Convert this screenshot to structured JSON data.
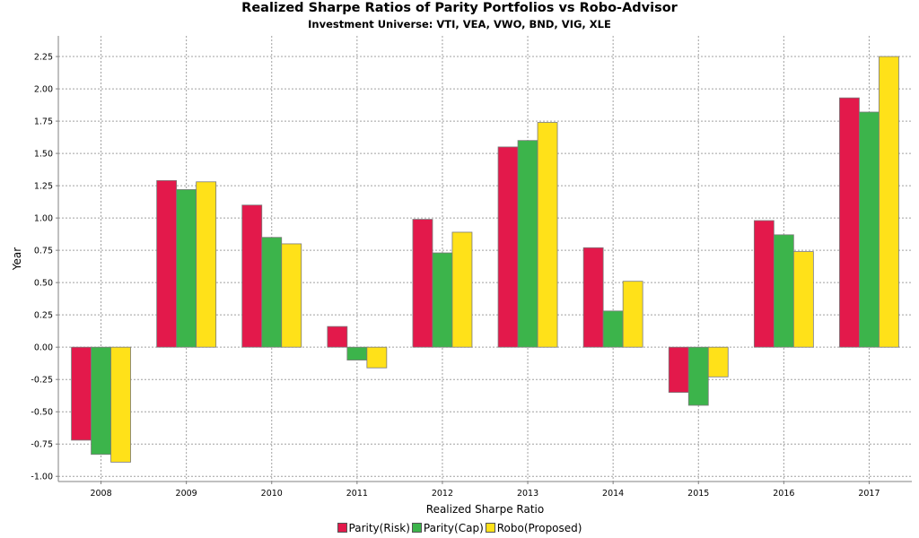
{
  "chart_data": {
    "type": "bar",
    "title": "Realized Sharpe Ratios of Parity Portfolios vs Robo-Advisor",
    "subtitle": "Investment Universe: VTI, VEA, VWO, BND, VIG, XLE",
    "xlabel": "Realized Sharpe Ratio",
    "ylabel": "Year",
    "categories": [
      "2008",
      "2009",
      "2010",
      "2011",
      "2012",
      "2013",
      "2014",
      "2015",
      "2016",
      "2017"
    ],
    "series": [
      {
        "name": "Parity(Risk)",
        "color": "#e3194b",
        "values": [
          -0.72,
          1.29,
          1.1,
          0.16,
          0.99,
          1.55,
          0.77,
          -0.35,
          0.98,
          1.93
        ]
      },
      {
        "name": "Parity(Cap)",
        "color": "#3cb44b",
        "values": [
          -0.83,
          1.22,
          0.85,
          -0.1,
          0.73,
          1.6,
          0.28,
          -0.45,
          0.87,
          1.82
        ]
      },
      {
        "name": "Robo(Proposed)",
        "color": "#ffe119",
        "values": [
          -0.89,
          1.28,
          0.8,
          -0.16,
          0.89,
          1.74,
          0.51,
          -0.23,
          0.74,
          2.25
        ]
      }
    ],
    "yticks": [
      "-1.00",
      "-0.75",
      "-0.50",
      "-0.25",
      "0.00",
      "0.25",
      "0.50",
      "0.75",
      "1.00",
      "1.25",
      "1.50",
      "1.75",
      "2.00",
      "2.25"
    ],
    "ylim": [
      -1.04,
      2.41
    ],
    "grid": true,
    "legend_position": "bottom"
  }
}
